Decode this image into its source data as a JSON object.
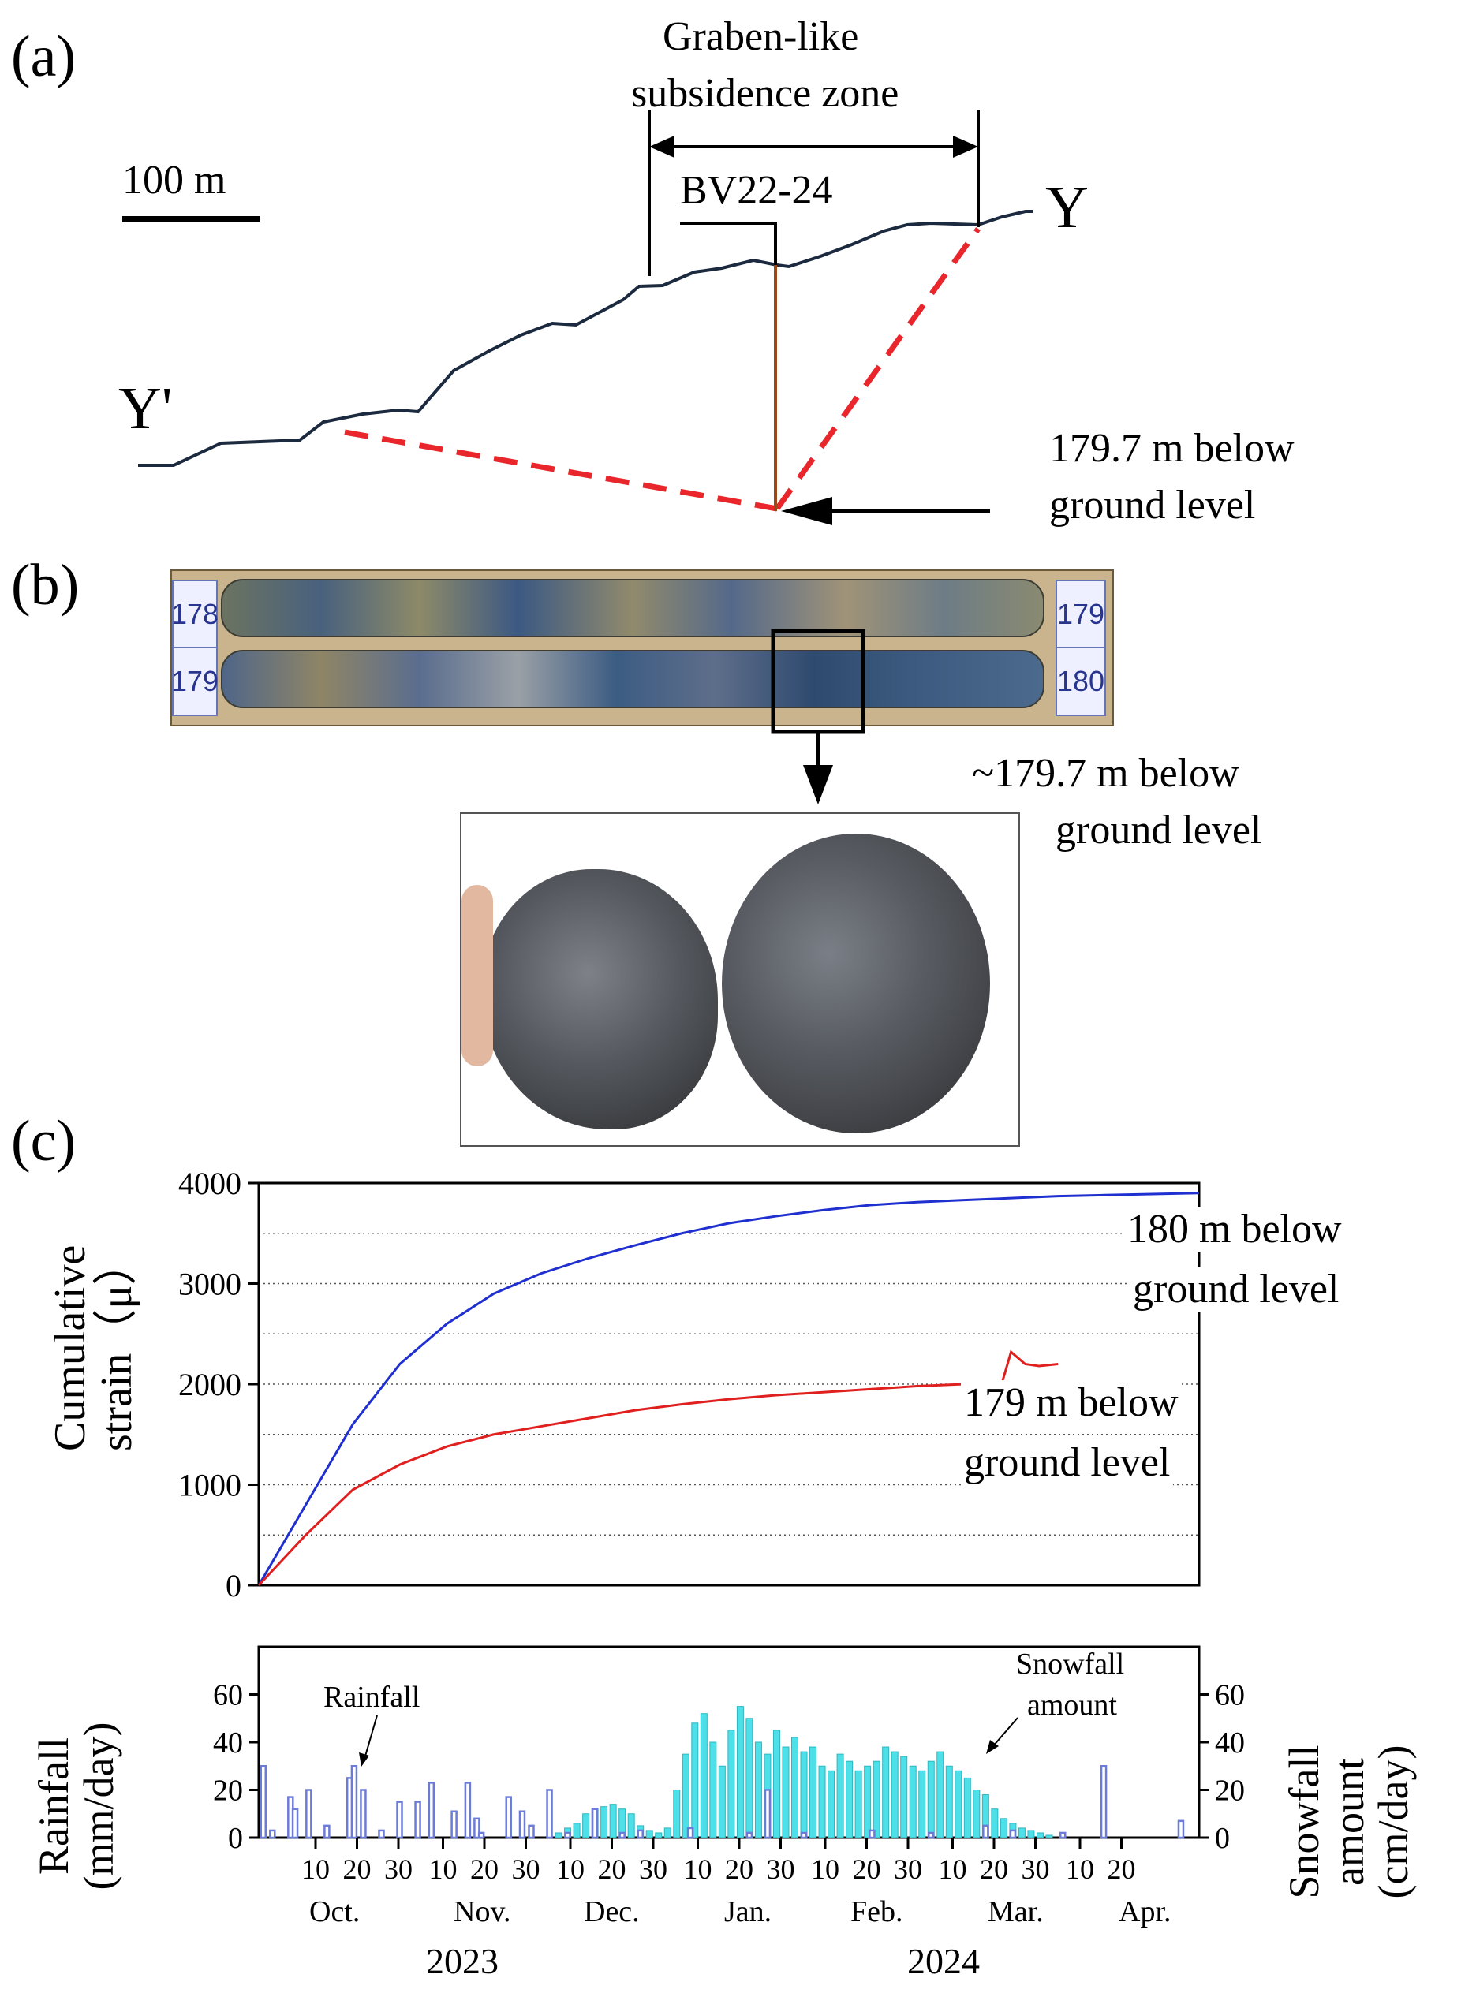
{
  "panel_a": {
    "label": "(a)",
    "zone_title_line1": "Graben-like",
    "zone_title_line2": "subsidence zone",
    "scale_label": "100 m",
    "borehole_label": "BV22-24",
    "end_left": "Y'",
    "end_right": "Y",
    "depth_note_line1": "179.7 m below",
    "depth_note_line2": "ground level",
    "colors": {
      "profile": "#1c2a3f",
      "fault": "#e8262b",
      "borehole": "#9a4a1a"
    }
  },
  "panel_b": {
    "label": "(b)",
    "tags": [
      "178",
      "179",
      "179",
      "180"
    ],
    "depth_note_line1": "~179.7 m below",
    "depth_note_line2": "ground level"
  },
  "panel_c": {
    "label": "(c)",
    "strain_ylabel_line1": "Cumulative",
    "strain_ylabel_line2": "strain（μ）",
    "rain_ylabel_line1": "Rainfall",
    "rain_ylabel_line2": "(mm/day)",
    "snow_ylabel_line1": "Snowfall",
    "snow_ylabel_line2": "amount",
    "snow_ylabel_line3": "(cm/day)",
    "series_180_label_line1": "180 m below",
    "series_180_label_line2": "ground level",
    "series_179_label_line1": "179 m below",
    "series_179_label_line2": "ground level",
    "rain_annotation": "Rainfall",
    "snow_annotation_line1": "Snowfall",
    "snow_annotation_line2": "amount",
    "day_ticks": [
      "10",
      "20",
      "30",
      "10",
      "20",
      "30",
      "10",
      "20",
      "30",
      "10",
      "20",
      "30",
      "10",
      "20",
      "30",
      "10",
      "20",
      "30",
      "10",
      "20"
    ],
    "months": [
      "Oct.",
      "Nov.",
      "Dec.",
      "Jan.",
      "Feb.",
      "Mar.",
      "Apr."
    ],
    "years": [
      "2023",
      "2024"
    ]
  },
  "chart_data": [
    {
      "type": "line",
      "ylim": [
        0,
        4000
      ],
      "yticks": [
        0,
        1000,
        2000,
        3000,
        4000
      ],
      "x_unit": "days since start of record",
      "series": [
        {
          "color": "#1f2fd0",
          "x": [
            0,
            5,
            10,
            20,
            30,
            40,
            50,
            60,
            70,
            80,
            90,
            100,
            110,
            120,
            130,
            140,
            150,
            160,
            170,
            180,
            190,
            200
          ],
          "values": [
            0,
            400,
            800,
            1600,
            2200,
            2600,
            2900,
            3100,
            3250,
            3380,
            3500,
            3600,
            3670,
            3730,
            3780,
            3810,
            3830,
            3850,
            3870,
            3880,
            3890,
            3900
          ]
        },
        {
          "color": "#e0201f",
          "x": [
            0,
            5,
            10,
            20,
            30,
            40,
            50,
            60,
            70,
            80,
            90,
            100,
            110,
            120,
            130,
            140,
            150,
            158,
            160,
            163,
            166,
            170
          ],
          "values": [
            0,
            250,
            500,
            950,
            1200,
            1380,
            1500,
            1580,
            1660,
            1740,
            1800,
            1850,
            1890,
            1920,
            1950,
            1980,
            2000,
            2000,
            2320,
            2200,
            2180,
            2200
          ]
        }
      ]
    },
    {
      "type": "bar",
      "ylim": [
        0,
        80
      ],
      "yticks": [
        0,
        20,
        40,
        60
      ],
      "y2ticks": [
        0,
        20,
        40,
        60
      ],
      "series": [
        {
          "color": "#6d7bd8",
          "x": [
            1,
            3,
            7,
            8,
            11,
            15,
            20,
            21,
            23,
            27,
            31,
            35,
            38,
            43,
            46,
            48,
            49,
            55,
            58,
            60,
            64,
            68,
            74,
            80,
            84,
            95,
            108,
            112,
            120,
            135,
            148,
            160,
            166,
            177,
            186,
            203
          ],
          "values": [
            30,
            3,
            17,
            12,
            20,
            5,
            25,
            30,
            20,
            3,
            15,
            15,
            23,
            11,
            23,
            8,
            2,
            17,
            11,
            5,
            20,
            2,
            12,
            2,
            3,
            4,
            2,
            20,
            2,
            3,
            2,
            5,
            3,
            2,
            30,
            7
          ]
        },
        {
          "color": "#4ee0e8",
          "x": [
            66,
            68,
            70,
            72,
            74,
            76,
            78,
            80,
            82,
            84,
            86,
            88,
            90,
            92,
            94,
            96,
            98,
            100,
            102,
            104,
            106,
            108,
            110,
            112,
            114,
            116,
            118,
            120,
            122,
            124,
            126,
            128,
            130,
            132,
            134,
            136,
            138,
            140,
            142,
            144,
            146,
            148,
            150,
            152,
            154,
            156,
            158,
            160,
            162,
            164,
            166,
            168,
            170,
            172,
            174
          ],
          "values": [
            2,
            4,
            6,
            10,
            12,
            13,
            14,
            12,
            10,
            5,
            3,
            2,
            4,
            20,
            35,
            48,
            52,
            40,
            30,
            45,
            55,
            50,
            40,
            35,
            45,
            38,
            42,
            36,
            38,
            30,
            28,
            35,
            32,
            28,
            30,
            32,
            38,
            36,
            34,
            30,
            28,
            32,
            36,
            30,
            28,
            25,
            20,
            18,
            12,
            8,
            6,
            4,
            3,
            2,
            1
          ]
        }
      ]
    }
  ]
}
